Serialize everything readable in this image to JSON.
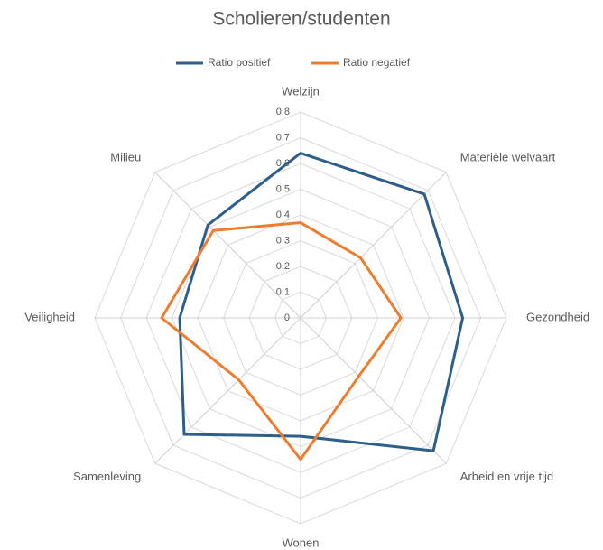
{
  "chart_data": {
    "type": "radar",
    "title": "Scholieren/studenten",
    "categories": [
      "Welzijn",
      "Materiële welvaart",
      "Gezondheid",
      "Arbeid en vrije tijd",
      "Wonen",
      "Samenleving",
      "Veiligheid",
      "Milieu"
    ],
    "series": [
      {
        "name": "Ratio positief",
        "color": "#2e5f8a",
        "values": [
          0.64,
          0.68,
          0.63,
          0.73,
          0.46,
          0.64,
          0.47,
          0.51
        ]
      },
      {
        "name": "Ratio negatief",
        "color": "#ed7d31",
        "values": [
          0.37,
          0.33,
          0.39,
          0.32,
          0.55,
          0.34,
          0.54,
          0.48
        ]
      }
    ],
    "ylim": [
      0,
      0.8
    ],
    "yticks": [
      0,
      0.1,
      0.2,
      0.3,
      0.4,
      0.5,
      0.6,
      0.7,
      0.8
    ],
    "grid": true,
    "legend": "top"
  }
}
